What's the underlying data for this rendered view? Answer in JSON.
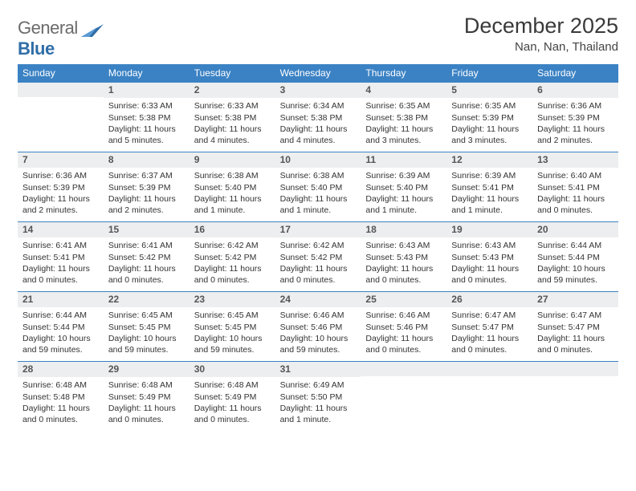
{
  "logo": {
    "general": "General",
    "blue": "Blue"
  },
  "title": "December 2025",
  "subtitle": "Nan, Nan, Thailand",
  "dow": [
    "Sunday",
    "Monday",
    "Tuesday",
    "Wednesday",
    "Thursday",
    "Friday",
    "Saturday"
  ],
  "colors": {
    "header_blue": "#3b82c4",
    "accent_blue": "#2f6ea8",
    "day_bg": "#eceeef",
    "text": "#333333"
  },
  "weeks": [
    [
      {
        "n": "",
        "sunrise": "",
        "sunset": "",
        "daylight": ""
      },
      {
        "n": "1",
        "sunrise": "Sunrise: 6:33 AM",
        "sunset": "Sunset: 5:38 PM",
        "daylight": "Daylight: 11 hours and 5 minutes."
      },
      {
        "n": "2",
        "sunrise": "Sunrise: 6:33 AM",
        "sunset": "Sunset: 5:38 PM",
        "daylight": "Daylight: 11 hours and 4 minutes."
      },
      {
        "n": "3",
        "sunrise": "Sunrise: 6:34 AM",
        "sunset": "Sunset: 5:38 PM",
        "daylight": "Daylight: 11 hours and 4 minutes."
      },
      {
        "n": "4",
        "sunrise": "Sunrise: 6:35 AM",
        "sunset": "Sunset: 5:38 PM",
        "daylight": "Daylight: 11 hours and 3 minutes."
      },
      {
        "n": "5",
        "sunrise": "Sunrise: 6:35 AM",
        "sunset": "Sunset: 5:39 PM",
        "daylight": "Daylight: 11 hours and 3 minutes."
      },
      {
        "n": "6",
        "sunrise": "Sunrise: 6:36 AM",
        "sunset": "Sunset: 5:39 PM",
        "daylight": "Daylight: 11 hours and 2 minutes."
      }
    ],
    [
      {
        "n": "7",
        "sunrise": "Sunrise: 6:36 AM",
        "sunset": "Sunset: 5:39 PM",
        "daylight": "Daylight: 11 hours and 2 minutes."
      },
      {
        "n": "8",
        "sunrise": "Sunrise: 6:37 AM",
        "sunset": "Sunset: 5:39 PM",
        "daylight": "Daylight: 11 hours and 2 minutes."
      },
      {
        "n": "9",
        "sunrise": "Sunrise: 6:38 AM",
        "sunset": "Sunset: 5:40 PM",
        "daylight": "Daylight: 11 hours and 1 minute."
      },
      {
        "n": "10",
        "sunrise": "Sunrise: 6:38 AM",
        "sunset": "Sunset: 5:40 PM",
        "daylight": "Daylight: 11 hours and 1 minute."
      },
      {
        "n": "11",
        "sunrise": "Sunrise: 6:39 AM",
        "sunset": "Sunset: 5:40 PM",
        "daylight": "Daylight: 11 hours and 1 minute."
      },
      {
        "n": "12",
        "sunrise": "Sunrise: 6:39 AM",
        "sunset": "Sunset: 5:41 PM",
        "daylight": "Daylight: 11 hours and 1 minute."
      },
      {
        "n": "13",
        "sunrise": "Sunrise: 6:40 AM",
        "sunset": "Sunset: 5:41 PM",
        "daylight": "Daylight: 11 hours and 0 minutes."
      }
    ],
    [
      {
        "n": "14",
        "sunrise": "Sunrise: 6:41 AM",
        "sunset": "Sunset: 5:41 PM",
        "daylight": "Daylight: 11 hours and 0 minutes."
      },
      {
        "n": "15",
        "sunrise": "Sunrise: 6:41 AM",
        "sunset": "Sunset: 5:42 PM",
        "daylight": "Daylight: 11 hours and 0 minutes."
      },
      {
        "n": "16",
        "sunrise": "Sunrise: 6:42 AM",
        "sunset": "Sunset: 5:42 PM",
        "daylight": "Daylight: 11 hours and 0 minutes."
      },
      {
        "n": "17",
        "sunrise": "Sunrise: 6:42 AM",
        "sunset": "Sunset: 5:42 PM",
        "daylight": "Daylight: 11 hours and 0 minutes."
      },
      {
        "n": "18",
        "sunrise": "Sunrise: 6:43 AM",
        "sunset": "Sunset: 5:43 PM",
        "daylight": "Daylight: 11 hours and 0 minutes."
      },
      {
        "n": "19",
        "sunrise": "Sunrise: 6:43 AM",
        "sunset": "Sunset: 5:43 PM",
        "daylight": "Daylight: 11 hours and 0 minutes."
      },
      {
        "n": "20",
        "sunrise": "Sunrise: 6:44 AM",
        "sunset": "Sunset: 5:44 PM",
        "daylight": "Daylight: 10 hours and 59 minutes."
      }
    ],
    [
      {
        "n": "21",
        "sunrise": "Sunrise: 6:44 AM",
        "sunset": "Sunset: 5:44 PM",
        "daylight": "Daylight: 10 hours and 59 minutes."
      },
      {
        "n": "22",
        "sunrise": "Sunrise: 6:45 AM",
        "sunset": "Sunset: 5:45 PM",
        "daylight": "Daylight: 10 hours and 59 minutes."
      },
      {
        "n": "23",
        "sunrise": "Sunrise: 6:45 AM",
        "sunset": "Sunset: 5:45 PM",
        "daylight": "Daylight: 10 hours and 59 minutes."
      },
      {
        "n": "24",
        "sunrise": "Sunrise: 6:46 AM",
        "sunset": "Sunset: 5:46 PM",
        "daylight": "Daylight: 10 hours and 59 minutes."
      },
      {
        "n": "25",
        "sunrise": "Sunrise: 6:46 AM",
        "sunset": "Sunset: 5:46 PM",
        "daylight": "Daylight: 11 hours and 0 minutes."
      },
      {
        "n": "26",
        "sunrise": "Sunrise: 6:47 AM",
        "sunset": "Sunset: 5:47 PM",
        "daylight": "Daylight: 11 hours and 0 minutes."
      },
      {
        "n": "27",
        "sunrise": "Sunrise: 6:47 AM",
        "sunset": "Sunset: 5:47 PM",
        "daylight": "Daylight: 11 hours and 0 minutes."
      }
    ],
    [
      {
        "n": "28",
        "sunrise": "Sunrise: 6:48 AM",
        "sunset": "Sunset: 5:48 PM",
        "daylight": "Daylight: 11 hours and 0 minutes."
      },
      {
        "n": "29",
        "sunrise": "Sunrise: 6:48 AM",
        "sunset": "Sunset: 5:49 PM",
        "daylight": "Daylight: 11 hours and 0 minutes."
      },
      {
        "n": "30",
        "sunrise": "Sunrise: 6:48 AM",
        "sunset": "Sunset: 5:49 PM",
        "daylight": "Daylight: 11 hours and 0 minutes."
      },
      {
        "n": "31",
        "sunrise": "Sunrise: 6:49 AM",
        "sunset": "Sunset: 5:50 PM",
        "daylight": "Daylight: 11 hours and 1 minute."
      },
      {
        "n": "",
        "sunrise": "",
        "sunset": "",
        "daylight": ""
      },
      {
        "n": "",
        "sunrise": "",
        "sunset": "",
        "daylight": ""
      },
      {
        "n": "",
        "sunrise": "",
        "sunset": "",
        "daylight": ""
      }
    ]
  ]
}
